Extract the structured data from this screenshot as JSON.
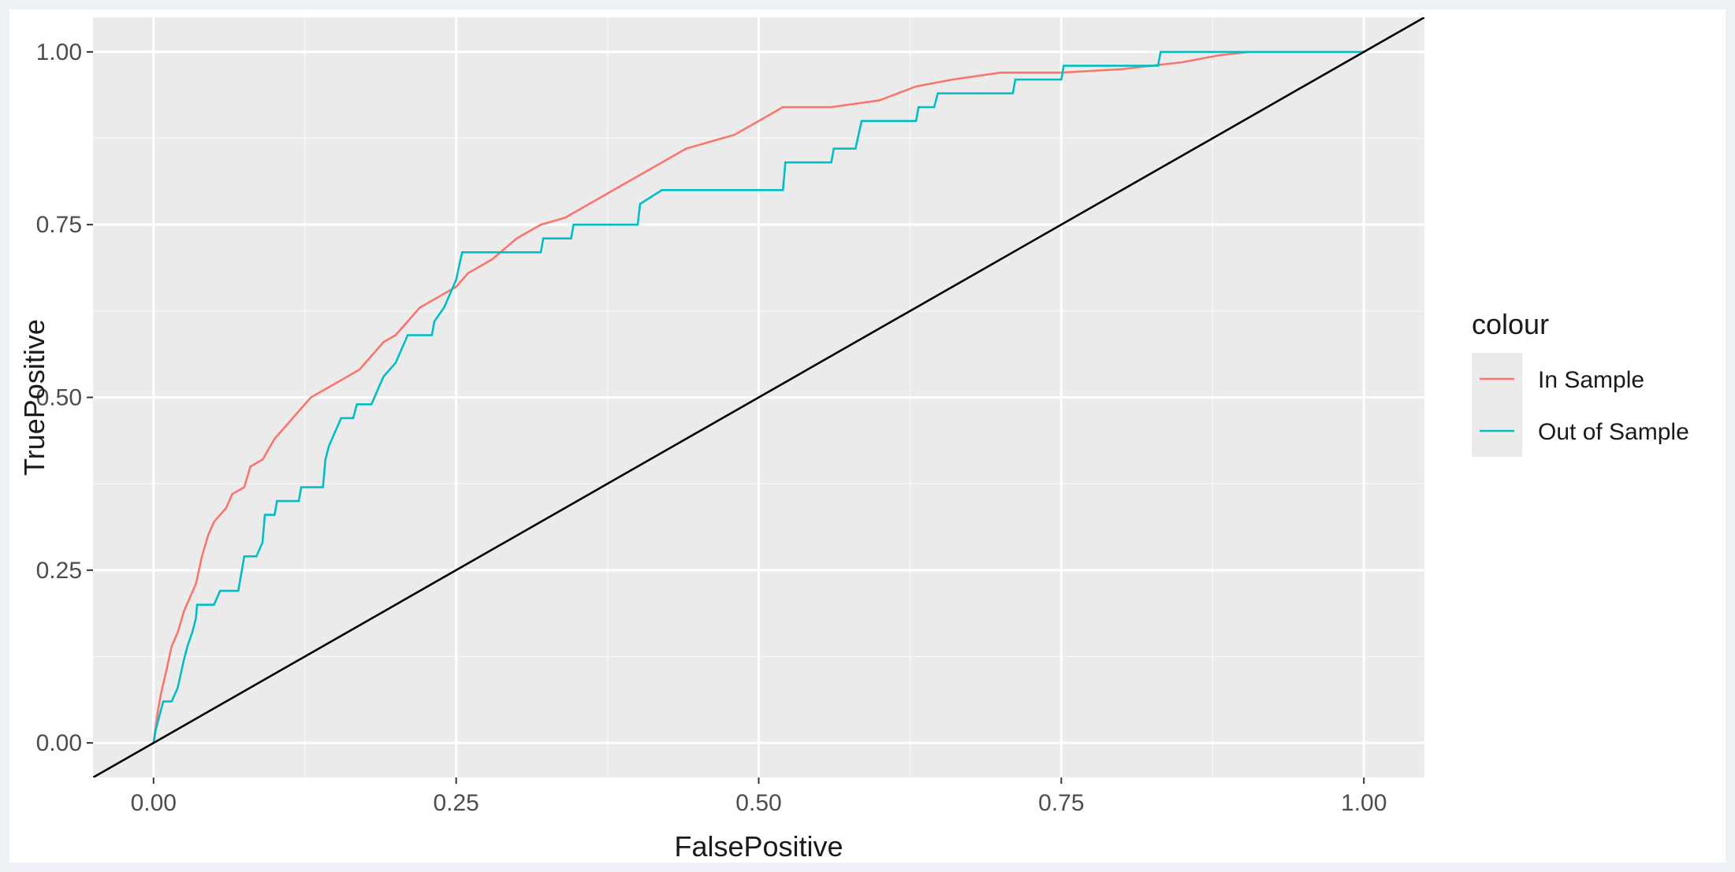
{
  "chart_data": {
    "type": "line",
    "title": "",
    "xlabel": "FalsePositive",
    "ylabel": "TruePositive",
    "xlim": [
      -0.05,
      1.05
    ],
    "ylim": [
      -0.05,
      1.05
    ],
    "x_ticks": [
      "0.00",
      "0.25",
      "0.50",
      "0.75",
      "1.00"
    ],
    "y_ticks": [
      "0.00",
      "0.25",
      "0.50",
      "0.75",
      "1.00"
    ],
    "grid": true,
    "legend": {
      "title": "colour",
      "placement": "right",
      "entries": [
        {
          "label": "In Sample",
          "color": "#F8766D"
        },
        {
          "label": "Out of Sample",
          "color": "#00BFC4"
        }
      ]
    },
    "series": [
      {
        "name": "In Sample",
        "color": "#F8766D",
        "points": [
          [
            0,
            0
          ],
          [
            0.003,
            0.04
          ],
          [
            0.006,
            0.07
          ],
          [
            0.01,
            0.1
          ],
          [
            0.015,
            0.14
          ],
          [
            0.02,
            0.16
          ],
          [
            0.025,
            0.19
          ],
          [
            0.03,
            0.21
          ],
          [
            0.035,
            0.23
          ],
          [
            0.04,
            0.27
          ],
          [
            0.045,
            0.3
          ],
          [
            0.05,
            0.32
          ],
          [
            0.06,
            0.34
          ],
          [
            0.065,
            0.36
          ],
          [
            0.075,
            0.37
          ],
          [
            0.08,
            0.4
          ],
          [
            0.09,
            0.41
          ],
          [
            0.1,
            0.44
          ],
          [
            0.11,
            0.46
          ],
          [
            0.12,
            0.48
          ],
          [
            0.13,
            0.5
          ],
          [
            0.15,
            0.52
          ],
          [
            0.17,
            0.54
          ],
          [
            0.18,
            0.56
          ],
          [
            0.19,
            0.58
          ],
          [
            0.2,
            0.59
          ],
          [
            0.21,
            0.61
          ],
          [
            0.22,
            0.63
          ],
          [
            0.23,
            0.64
          ],
          [
            0.25,
            0.66
          ],
          [
            0.26,
            0.68
          ],
          [
            0.28,
            0.7
          ],
          [
            0.3,
            0.73
          ],
          [
            0.32,
            0.75
          ],
          [
            0.34,
            0.76
          ],
          [
            0.36,
            0.78
          ],
          [
            0.37,
            0.79
          ],
          [
            0.38,
            0.8
          ],
          [
            0.4,
            0.82
          ],
          [
            0.42,
            0.84
          ],
          [
            0.44,
            0.86
          ],
          [
            0.46,
            0.87
          ],
          [
            0.48,
            0.88
          ],
          [
            0.5,
            0.9
          ],
          [
            0.52,
            0.92
          ],
          [
            0.56,
            0.92
          ],
          [
            0.6,
            0.93
          ],
          [
            0.63,
            0.95
          ],
          [
            0.66,
            0.96
          ],
          [
            0.7,
            0.97
          ],
          [
            0.75,
            0.97
          ],
          [
            0.8,
            0.975
          ],
          [
            0.85,
            0.985
          ],
          [
            0.88,
            0.995
          ],
          [
            0.905,
            1.0
          ]
        ]
      },
      {
        "name": "Out of Sample",
        "color": "#00BFC4",
        "points": [
          [
            0,
            0
          ],
          [
            0.002,
            0.02
          ],
          [
            0.005,
            0.04
          ],
          [
            0.008,
            0.06
          ],
          [
            0.015,
            0.06
          ],
          [
            0.02,
            0.08
          ],
          [
            0.025,
            0.12
          ],
          [
            0.028,
            0.14
          ],
          [
            0.032,
            0.16
          ],
          [
            0.035,
            0.18
          ],
          [
            0.036,
            0.2
          ],
          [
            0.05,
            0.2
          ],
          [
            0.055,
            0.22
          ],
          [
            0.07,
            0.22
          ],
          [
            0.072,
            0.24
          ],
          [
            0.075,
            0.27
          ],
          [
            0.085,
            0.27
          ],
          [
            0.09,
            0.29
          ],
          [
            0.092,
            0.33
          ],
          [
            0.1,
            0.33
          ],
          [
            0.102,
            0.35
          ],
          [
            0.12,
            0.35
          ],
          [
            0.122,
            0.37
          ],
          [
            0.14,
            0.37
          ],
          [
            0.142,
            0.41
          ],
          [
            0.145,
            0.43
          ],
          [
            0.15,
            0.45
          ],
          [
            0.155,
            0.47
          ],
          [
            0.165,
            0.47
          ],
          [
            0.168,
            0.49
          ],
          [
            0.18,
            0.49
          ],
          [
            0.185,
            0.51
          ],
          [
            0.19,
            0.53
          ],
          [
            0.2,
            0.55
          ],
          [
            0.205,
            0.57
          ],
          [
            0.21,
            0.59
          ],
          [
            0.23,
            0.59
          ],
          [
            0.232,
            0.61
          ],
          [
            0.24,
            0.63
          ],
          [
            0.245,
            0.65
          ],
          [
            0.25,
            0.67
          ],
          [
            0.255,
            0.71
          ],
          [
            0.32,
            0.71
          ],
          [
            0.322,
            0.73
          ],
          [
            0.345,
            0.73
          ],
          [
            0.347,
            0.75
          ],
          [
            0.4,
            0.75
          ],
          [
            0.402,
            0.78
          ],
          [
            0.42,
            0.8
          ],
          [
            0.52,
            0.8
          ],
          [
            0.522,
            0.84
          ],
          [
            0.56,
            0.84
          ],
          [
            0.562,
            0.86
          ],
          [
            0.58,
            0.86
          ],
          [
            0.585,
            0.9
          ],
          [
            0.63,
            0.9
          ],
          [
            0.632,
            0.92
          ],
          [
            0.645,
            0.92
          ],
          [
            0.648,
            0.94
          ],
          [
            0.71,
            0.94
          ],
          [
            0.712,
            0.96
          ],
          [
            0.75,
            0.96
          ],
          [
            0.752,
            0.98
          ],
          [
            0.83,
            0.98
          ],
          [
            0.832,
            1.0
          ],
          [
            1.0,
            1.0
          ]
        ]
      },
      {
        "name": "",
        "color": "#000000",
        "points": [
          [
            -0.05,
            -0.05
          ],
          [
            1.05,
            1.05
          ]
        ]
      }
    ]
  }
}
